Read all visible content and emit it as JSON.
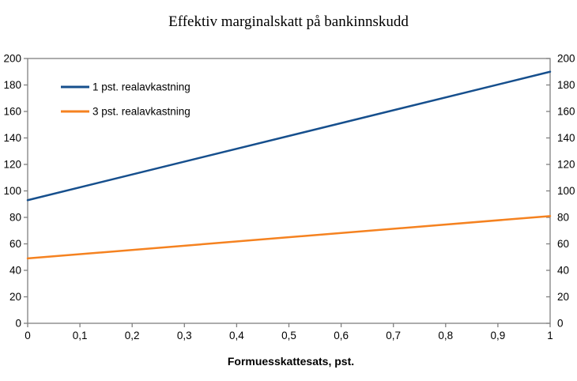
{
  "title": "Effektiv marginalskatt på bankinnskudd",
  "chart_data": {
    "type": "line",
    "title": "Effektiv marginalskatt på bankinnskudd",
    "xlabel": "Formuesskattesats, pst.",
    "ylabel": "",
    "xlim": [
      0,
      1
    ],
    "ylim": [
      0,
      200
    ],
    "x_ticks": [
      0,
      0.1,
      0.2,
      0.3,
      0.4,
      0.5,
      0.6,
      0.7,
      0.8,
      0.9,
      1
    ],
    "x_tick_labels": [
      "0",
      "0,1",
      "0,2",
      "0,3",
      "0,4",
      "0,5",
      "0,6",
      "0,7",
      "0,8",
      "0,9",
      "1"
    ],
    "y_ticks": [
      0,
      20,
      40,
      60,
      80,
      100,
      120,
      140,
      160,
      180,
      200
    ],
    "y_tick_labels": [
      "0",
      "20",
      "40",
      "60",
      "80",
      "100",
      "120",
      "140",
      "160",
      "180",
      "200"
    ],
    "grid": false,
    "plot_border": true,
    "right_axis_mirror": true,
    "legend_position": "upper-left-inside",
    "axis_color": "#808080",
    "text_color": "#000000",
    "series": [
      {
        "name": "1 pst. realavkastning",
        "color": "#164F8D",
        "x": [
          0,
          1
        ],
        "y": [
          93,
          190
        ]
      },
      {
        "name": "3 pst. realavkastning",
        "color": "#F58220",
        "x": [
          0,
          1
        ],
        "y": [
          49,
          81
        ]
      }
    ]
  }
}
